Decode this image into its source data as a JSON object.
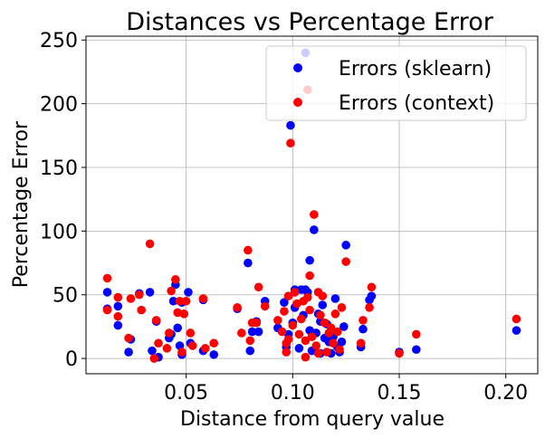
{
  "chart_data": {
    "type": "scatter",
    "title": "Distances vs Percentage Error",
    "xlabel": "Distance from query value",
    "ylabel": "Percentage Error",
    "xlim": [
      0.003,
      0.215
    ],
    "ylim": [
      -12,
      253
    ],
    "xticks": [
      0.05,
      0.1,
      0.15,
      0.2
    ],
    "xtick_labels": [
      "0.05",
      "0.10",
      "0.15",
      "0.20"
    ],
    "yticks": [
      0,
      50,
      100,
      150,
      200,
      250
    ],
    "ytick_labels": [
      "0",
      "50",
      "100",
      "150",
      "200",
      "250"
    ],
    "grid": true,
    "legend_position": "top-right",
    "series": [
      {
        "name": "Errors (sklearn)",
        "color": "#0000ff",
        "points": [
          [
            0.013,
            52
          ],
          [
            0.013,
            39
          ],
          [
            0.018,
            26
          ],
          [
            0.018,
            41
          ],
          [
            0.023,
            5
          ],
          [
            0.024,
            15
          ],
          [
            0.028,
            51
          ],
          [
            0.033,
            52
          ],
          [
            0.034,
            6
          ],
          [
            0.036,
            29
          ],
          [
            0.037,
            1
          ],
          [
            0.042,
            16
          ],
          [
            0.043,
            19
          ],
          [
            0.044,
            45
          ],
          [
            0.045,
            58
          ],
          [
            0.046,
            24
          ],
          [
            0.047,
            10
          ],
          [
            0.048,
            44
          ],
          [
            0.048,
            3
          ],
          [
            0.051,
            52
          ],
          [
            0.052,
            12
          ],
          [
            0.058,
            46
          ],
          [
            0.058,
            6
          ],
          [
            0.063,
            3
          ],
          [
            0.074,
            39
          ],
          [
            0.079,
            75
          ],
          [
            0.08,
            6
          ],
          [
            0.081,
            21
          ],
          [
            0.083,
            29
          ],
          [
            0.084,
            21
          ],
          [
            0.087,
            45
          ],
          [
            0.093,
            24
          ],
          [
            0.096,
            44
          ],
          [
            0.097,
            9
          ],
          [
            0.098,
            19
          ],
          [
            0.099,
            183
          ],
          [
            0.1,
            28
          ],
          [
            0.101,
            40
          ],
          [
            0.101,
            54
          ],
          [
            0.103,
            8
          ],
          [
            0.104,
            54
          ],
          [
            0.105,
            34
          ],
          [
            0.106,
            240
          ],
          [
            0.106,
            54
          ],
          [
            0.107,
            52
          ],
          [
            0.108,
            77
          ],
          [
            0.108,
            22
          ],
          [
            0.109,
            6
          ],
          [
            0.11,
            101
          ],
          [
            0.111,
            20
          ],
          [
            0.112,
            35
          ],
          [
            0.113,
            29
          ],
          [
            0.113,
            4
          ],
          [
            0.114,
            42
          ],
          [
            0.115,
            16
          ],
          [
            0.116,
            27
          ],
          [
            0.117,
            13
          ],
          [
            0.118,
            4
          ],
          [
            0.119,
            17
          ],
          [
            0.12,
            47
          ],
          [
            0.121,
            9
          ],
          [
            0.122,
            5
          ],
          [
            0.123,
            13
          ],
          [
            0.124,
            25
          ],
          [
            0.125,
            89
          ],
          [
            0.132,
            9
          ],
          [
            0.133,
            23
          ],
          [
            0.136,
            46
          ],
          [
            0.137,
            49
          ],
          [
            0.15,
            5
          ],
          [
            0.158,
            7
          ],
          [
            0.205,
            22
          ]
        ]
      },
      {
        "name": "Errors (context)",
        "color": "#ff0000",
        "points": [
          [
            0.013,
            63
          ],
          [
            0.013,
            38
          ],
          [
            0.018,
            48
          ],
          [
            0.018,
            33
          ],
          [
            0.023,
            16
          ],
          [
            0.024,
            47
          ],
          [
            0.028,
            50
          ],
          [
            0.029,
            38
          ],
          [
            0.033,
            90
          ],
          [
            0.035,
            0
          ],
          [
            0.036,
            30
          ],
          [
            0.037,
            12
          ],
          [
            0.041,
            8
          ],
          [
            0.042,
            20
          ],
          [
            0.043,
            53
          ],
          [
            0.045,
            62
          ],
          [
            0.046,
            36
          ],
          [
            0.047,
            45
          ],
          [
            0.048,
            5
          ],
          [
            0.049,
            35
          ],
          [
            0.05,
            45
          ],
          [
            0.052,
            20
          ],
          [
            0.053,
            10
          ],
          [
            0.058,
            47
          ],
          [
            0.059,
            8
          ],
          [
            0.063,
            12
          ],
          [
            0.074,
            40
          ],
          [
            0.076,
            20
          ],
          [
            0.079,
            85
          ],
          [
            0.08,
            14
          ],
          [
            0.081,
            28
          ],
          [
            0.083,
            28
          ],
          [
            0.084,
            56
          ],
          [
            0.087,
            41
          ],
          [
            0.093,
            30
          ],
          [
            0.095,
            21
          ],
          [
            0.096,
            37
          ],
          [
            0.097,
            5
          ],
          [
            0.097,
            12
          ],
          [
            0.098,
            15
          ],
          [
            0.098,
            49
          ],
          [
            0.099,
            169
          ],
          [
            0.1,
            26
          ],
          [
            0.101,
            52
          ],
          [
            0.102,
            43
          ],
          [
            0.103,
            19
          ],
          [
            0.104,
            31
          ],
          [
            0.105,
            45
          ],
          [
            0.106,
            1
          ],
          [
            0.106,
            14
          ],
          [
            0.107,
            211
          ],
          [
            0.107,
            48
          ],
          [
            0.108,
            65
          ],
          [
            0.108,
            38
          ],
          [
            0.109,
            17
          ],
          [
            0.11,
            113
          ],
          [
            0.111,
            10
          ],
          [
            0.112,
            4
          ],
          [
            0.112,
            52
          ],
          [
            0.113,
            34
          ],
          [
            0.114,
            49
          ],
          [
            0.115,
            28
          ],
          [
            0.116,
            5
          ],
          [
            0.117,
            20
          ],
          [
            0.118,
            24
          ],
          [
            0.119,
            12
          ],
          [
            0.12,
            35
          ],
          [
            0.121,
            21
          ],
          [
            0.122,
            7
          ],
          [
            0.123,
            40
          ],
          [
            0.125,
            76
          ],
          [
            0.132,
            12
          ],
          [
            0.133,
            30
          ],
          [
            0.136,
            40
          ],
          [
            0.137,
            56
          ],
          [
            0.15,
            4
          ],
          [
            0.158,
            19
          ],
          [
            0.205,
            31
          ]
        ]
      }
    ]
  }
}
